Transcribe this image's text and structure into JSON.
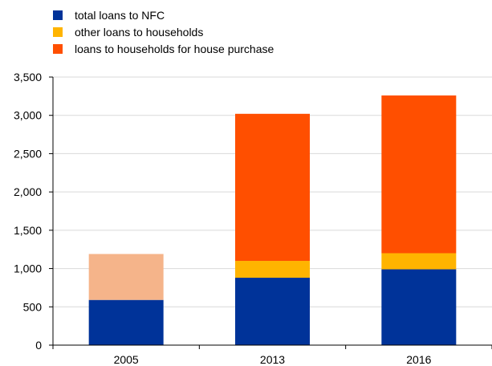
{
  "chart_data": {
    "type": "bar",
    "stacked": true,
    "categories": [
      "2005",
      "2013",
      "2016"
    ],
    "series": [
      {
        "name": "total loans to NFC",
        "color": "#003399",
        "values": [
          590,
          880,
          990
        ]
      },
      {
        "name": "other loans to households",
        "color": "#FFB400",
        "values": [
          0,
          220,
          210
        ]
      },
      {
        "name": "loans to households for house purchase",
        "color": "#FF4F00",
        "values": [
          0,
          1920,
          2060
        ]
      }
    ],
    "unsplit": [
      {
        "category": "2005",
        "base": 590,
        "value": 600,
        "color": "#F5B48A"
      }
    ],
    "ylim": [
      0,
      3500
    ],
    "yticks": [
      {
        "value": 0,
        "label": "0"
      },
      {
        "value": 500,
        "label": "500"
      },
      {
        "value": 1000,
        "label": "1,000"
      },
      {
        "value": 1500,
        "label": "1,500"
      },
      {
        "value": 2000,
        "label": "2,000"
      },
      {
        "value": 2500,
        "label": "2,500"
      },
      {
        "value": 3000,
        "label": "3,000"
      },
      {
        "value": 3500,
        "label": "3,500"
      }
    ],
    "grid": true,
    "legend": "top-left"
  }
}
